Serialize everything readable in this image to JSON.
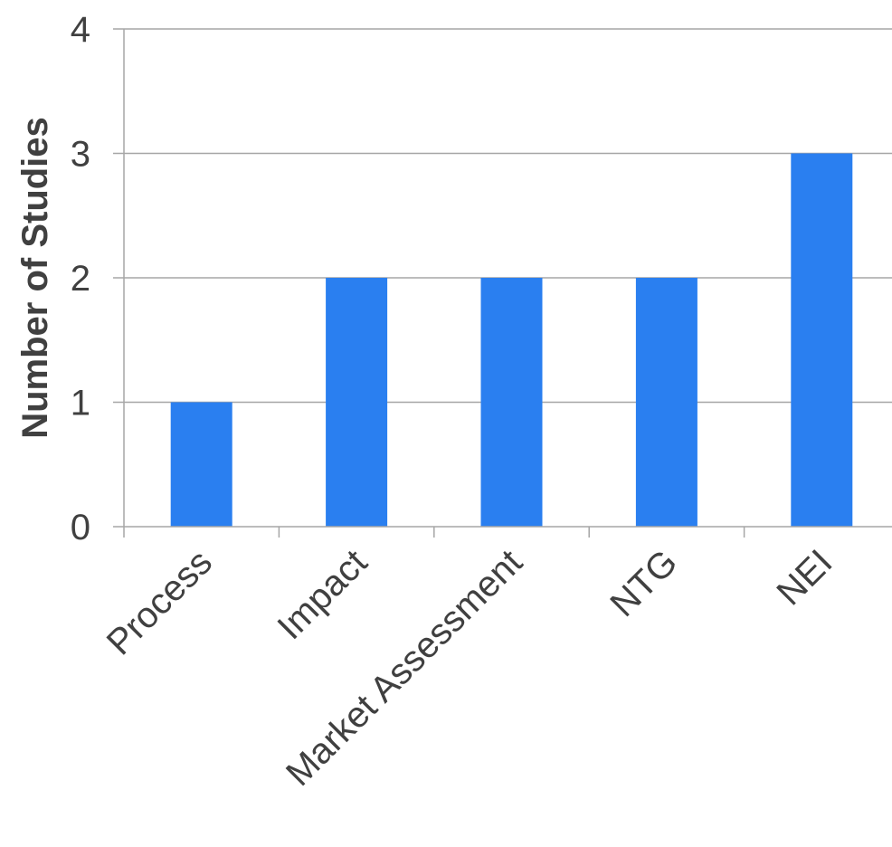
{
  "chart_data": {
    "type": "bar",
    "categories": [
      "Process",
      "Impact",
      "Market Assessment",
      "NTG",
      "NEI"
    ],
    "values": [
      1,
      2,
      2,
      2,
      3
    ],
    "ylabel": "Number of Studies",
    "xlabel": "",
    "ylim": [
      0,
      4
    ],
    "yticks": [
      "0",
      "1",
      "2",
      "3",
      "4"
    ],
    "grid": true,
    "legend": "none",
    "bar_color": "#2a7ff0",
    "grid_color": "#a6a6a6",
    "text_color": "#404040"
  }
}
